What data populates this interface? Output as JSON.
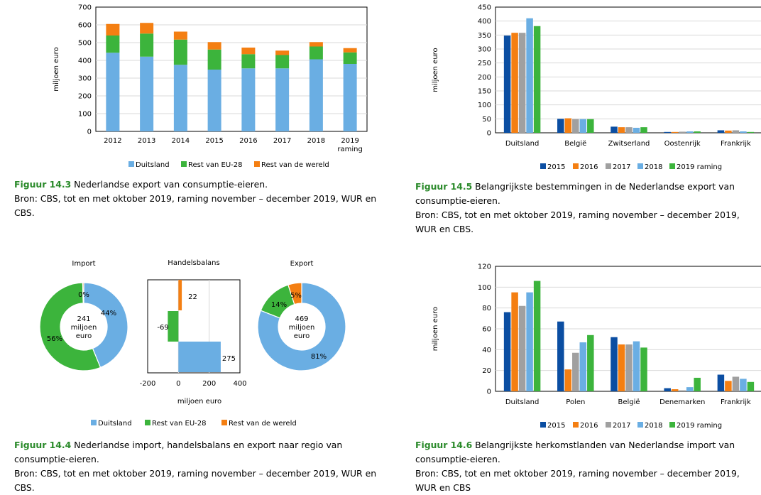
{
  "colors": {
    "duitsland": "#6aaee3",
    "rest_eu": "#3cb43c",
    "rest_wereld": "#f47f12",
    "y2015": "#0b4ea2",
    "y2016": "#f47f12",
    "y2017": "#a0a0a0",
    "y2018": "#6aaee3",
    "y2019": "#3cb43c"
  },
  "chart_data": [
    {
      "id": "fig143",
      "type": "bar",
      "stacked": true,
      "ylabel": "miljoen euro",
      "ylim": [
        0,
        700
      ],
      "yticks": [
        0,
        100,
        200,
        300,
        400,
        500,
        600,
        700
      ],
      "categories": [
        "2012",
        "2013",
        "2014",
        "2015",
        "2016",
        "2017",
        "2018",
        "2019\nraming"
      ],
      "series": [
        {
          "name": "Duitsland",
          "color": "#6aaee3",
          "values": [
            443,
            421,
            375,
            348,
            355,
            355,
            406,
            380
          ]
        },
        {
          "name": "Rest van EU-28",
          "color": "#3cb43c",
          "values": [
            97,
            130,
            142,
            113,
            80,
            75,
            72,
            65
          ]
        },
        {
          "name": "Rest van de wereld",
          "color": "#f47f12",
          "values": [
            65,
            60,
            45,
            42,
            37,
            25,
            25,
            24
          ]
        }
      ]
    },
    {
      "id": "fig145",
      "type": "bar",
      "ylabel": "miljoen euro",
      "ylim": [
        0,
        450
      ],
      "yticks": [
        0,
        50,
        100,
        150,
        200,
        250,
        300,
        350,
        400,
        450
      ],
      "categories": [
        "Duitsland",
        "België",
        "Zwitserland",
        "Oostenrijk",
        "Frankrijk"
      ],
      "series": [
        {
          "name": "2015",
          "color": "#0b4ea2",
          "values": [
            348,
            50,
            22,
            3,
            9
          ]
        },
        {
          "name": "2016",
          "color": "#f47f12",
          "values": [
            358,
            52,
            20,
            3,
            8
          ]
        },
        {
          "name": "2017",
          "color": "#a0a0a0",
          "values": [
            358,
            49,
            20,
            4,
            9
          ]
        },
        {
          "name": "2018",
          "color": "#6aaee3",
          "values": [
            410,
            49,
            18,
            5,
            5
          ]
        },
        {
          "name": "2019 raming",
          "color": "#3cb43c",
          "values": [
            382,
            49,
            20,
            5,
            3
          ]
        }
      ]
    },
    {
      "id": "fig144_import",
      "type": "pie",
      "title": "Import",
      "center_text": [
        "241",
        "miljoen",
        "euro"
      ],
      "slices": [
        {
          "name": "Duitsland",
          "value": 44,
          "label": "44%",
          "color": "#6aaee3"
        },
        {
          "name": "Rest van EU-28",
          "value": 56,
          "label": "56%",
          "color": "#3cb43c"
        },
        {
          "name": "Rest van de wereld",
          "value": 0.4,
          "label": "0%",
          "color": "#f47f12"
        }
      ]
    },
    {
      "id": "fig144_balans",
      "type": "bar",
      "orientation": "horizontal",
      "title": "Handelsbalans",
      "xlabel": "miljoen euro",
      "xlim": [
        -200,
        400
      ],
      "xticks": [
        -200,
        0,
        200,
        400
      ],
      "bars": [
        {
          "name": "Rest van de wereld",
          "value": 22,
          "label": "22",
          "color": "#f47f12"
        },
        {
          "name": "Rest van EU-28",
          "value": -69,
          "label": "-69",
          "color": "#3cb43c"
        },
        {
          "name": "Duitsland",
          "value": 275,
          "label": "275",
          "color": "#6aaee3"
        }
      ]
    },
    {
      "id": "fig144_export",
      "type": "pie",
      "title": "Export",
      "center_text": [
        "469",
        "miljoen",
        "euro"
      ],
      "slices": [
        {
          "name": "Duitsland",
          "value": 81,
          "label": "81%",
          "color": "#6aaee3"
        },
        {
          "name": "Rest van EU-28",
          "value": 14,
          "label": "14%",
          "color": "#3cb43c"
        },
        {
          "name": "Rest van de wereld",
          "value": 5,
          "label": "5%",
          "color": "#f47f12"
        }
      ]
    },
    {
      "id": "fig146",
      "type": "bar",
      "ylabel": "miljoen euro",
      "ylim": [
        0,
        120
      ],
      "yticks": [
        0,
        20,
        40,
        60,
        80,
        100,
        120
      ],
      "categories": [
        "Duitsland",
        "Polen",
        "België",
        "Denemarken",
        "Frankrijk"
      ],
      "series": [
        {
          "name": "2015",
          "color": "#0b4ea2",
          "values": [
            76,
            67,
            52,
            3,
            16
          ]
        },
        {
          "name": "2016",
          "color": "#f47f12",
          "values": [
            95,
            21,
            45,
            2,
            10
          ]
        },
        {
          "name": "2017",
          "color": "#a0a0a0",
          "values": [
            82,
            37,
            45,
            1,
            14
          ]
        },
        {
          "name": "2018",
          "color": "#6aaee3",
          "values": [
            95,
            47,
            48,
            4,
            12
          ]
        },
        {
          "name": "2019 raming",
          "color": "#3cb43c",
          "values": [
            106,
            54,
            42,
            13,
            9
          ]
        }
      ]
    }
  ],
  "legends": {
    "regions": [
      "Duitsland",
      "Rest van EU-28",
      "Rest van de wereld"
    ],
    "years": [
      "2015",
      "2016",
      "2017",
      "2018",
      "2019 raming"
    ]
  },
  "captions": {
    "fig143": {
      "label": "Figuur 14.3",
      "text": " Nederlandse export van consumptie-eieren.",
      "source": "Bron: CBS, tot en met oktober 2019, raming november – december 2019, WUR en CBS."
    },
    "fig145": {
      "label": "Figuur 14.5",
      "text": " Belangrijkste bestemmingen in de Nederlandse export van consumptie-eieren.",
      "source": "Bron: CBS, tot en met oktober 2019, raming november – december 2019, WUR en CBS."
    },
    "fig144": {
      "label": "Figuur 14.4",
      "text": " Nederlandse import, handelsbalans en export naar regio van consumptie-eieren.",
      "source": "Bron: CBS, tot en met oktober 2019, raming november – december 2019, WUR en CBS."
    },
    "fig146": {
      "label": "Figuur 14.6",
      "text": " Belangrijkste herkomstlanden van Nederlandse import van consumptie-eieren.",
      "source": "Bron: CBS, tot en met oktober 2019, raming november – december 2019, WUR en CBS"
    }
  }
}
